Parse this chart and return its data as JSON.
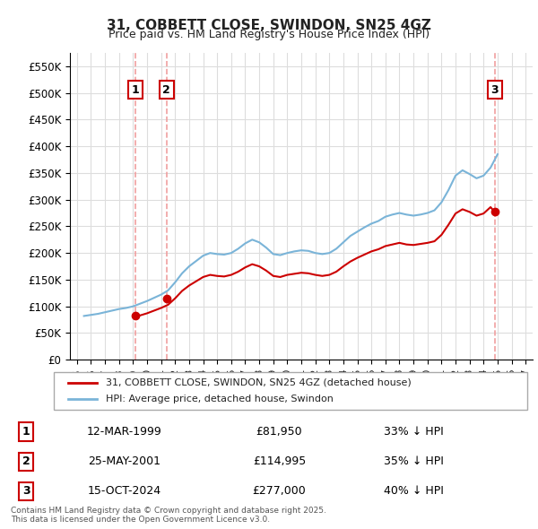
{
  "title": "31, COBBETT CLOSE, SWINDON, SN25 4GZ",
  "subtitle": "Price paid vs. HM Land Registry's House Price Index (HPI)",
  "legend_entry1": "31, COBBETT CLOSE, SWINDON, SN25 4GZ (detached house)",
  "legend_entry2": "HPI: Average price, detached house, Swindon",
  "hpi_color": "#7ab4d8",
  "property_color": "#cc0000",
  "vline_color_light": "#f0a0a0",
  "background_color": "#ffffff",
  "grid_color": "#dddddd",
  "annotation_box_color": "#cc0000",
  "ylim": [
    0,
    575000
  ],
  "yticks": [
    0,
    50000,
    100000,
    150000,
    200000,
    250000,
    300000,
    350000,
    400000,
    450000,
    500000,
    550000
  ],
  "transactions": [
    {
      "id": 1,
      "date": 1999.19,
      "price": 81950,
      "label": "1",
      "vline_x": 1999.19
    },
    {
      "id": 2,
      "date": 2001.39,
      "price": 114995,
      "label": "2",
      "vline_x": 2001.39
    },
    {
      "id": 3,
      "date": 2024.79,
      "price": 277000,
      "label": "3",
      "vline_x": 2024.79
    }
  ],
  "table_rows": [
    {
      "num": "1",
      "date": "12-MAR-1999",
      "price": "£81,950",
      "hpi": "33% ↓ HPI"
    },
    {
      "num": "2",
      "date": "25-MAY-2001",
      "price": "£114,995",
      "hpi": "35% ↓ HPI"
    },
    {
      "num": "3",
      "date": "15-OCT-2024",
      "price": "£277,000",
      "hpi": "40% ↓ HPI"
    }
  ],
  "footer": "Contains HM Land Registry data © Crown copyright and database right 2025.\nThis data is licensed under the Open Government Licence v3.0.",
  "hpi_data": {
    "x": [
      1995.5,
      1996.0,
      1996.5,
      1997.0,
      1997.5,
      1998.0,
      1998.5,
      1999.0,
      1999.5,
      2000.0,
      2000.5,
      2001.0,
      2001.5,
      2002.0,
      2002.5,
      2003.0,
      2003.5,
      2004.0,
      2004.5,
      2005.0,
      2005.5,
      2006.0,
      2006.5,
      2007.0,
      2007.5,
      2008.0,
      2008.5,
      2009.0,
      2009.5,
      2010.0,
      2010.5,
      2011.0,
      2011.5,
      2012.0,
      2012.5,
      2013.0,
      2013.5,
      2014.0,
      2014.5,
      2015.0,
      2015.5,
      2016.0,
      2016.5,
      2017.0,
      2017.5,
      2018.0,
      2018.5,
      2019.0,
      2019.5,
      2020.0,
      2020.5,
      2021.0,
      2021.5,
      2022.0,
      2022.5,
      2023.0,
      2023.5,
      2024.0,
      2024.5,
      2025.0
    ],
    "y": [
      82000,
      84000,
      86000,
      89000,
      92000,
      95000,
      97000,
      100000,
      105000,
      110000,
      116000,
      122000,
      130000,
      145000,
      162000,
      175000,
      185000,
      195000,
      200000,
      198000,
      197000,
      200000,
      208000,
      218000,
      225000,
      220000,
      210000,
      198000,
      196000,
      200000,
      203000,
      205000,
      204000,
      200000,
      198000,
      200000,
      208000,
      220000,
      232000,
      240000,
      248000,
      255000,
      260000,
      268000,
      272000,
      275000,
      272000,
      270000,
      272000,
      275000,
      280000,
      295000,
      318000,
      345000,
      355000,
      348000,
      340000,
      345000,
      360000,
      385000
    ]
  },
  "property_data": {
    "x": [
      1999.19,
      2001.39,
      2024.79
    ],
    "y": [
      81950,
      114995,
      277000
    ]
  },
  "hpi_indexed_data": {
    "x": [
      1999.19,
      1999.5,
      2000.0,
      2000.5,
      2001.0,
      2001.5,
      2002.0,
      2002.5,
      2003.0,
      2003.5,
      2004.0,
      2004.5,
      2005.0,
      2005.5,
      2006.0,
      2006.5,
      2007.0,
      2007.5,
      2008.0,
      2008.5,
      2009.0,
      2009.5,
      2010.0,
      2010.5,
      2011.0,
      2011.5,
      2012.0,
      2012.5,
      2013.0,
      2013.5,
      2014.0,
      2014.5,
      2015.0,
      2015.5,
      2016.0,
      2016.5,
      2017.0,
      2017.5,
      2018.0,
      2018.5,
      2019.0,
      2019.5,
      2020.0,
      2020.5,
      2021.0,
      2021.5,
      2022.0,
      2022.5,
      2023.0,
      2023.5,
      2024.0,
      2024.5,
      2024.79
    ],
    "y": [
      81950,
      83000,
      87000,
      92000,
      97000,
      103000,
      115000,
      129000,
      139000,
      147000,
      155000,
      159000,
      157000,
      156000,
      159000,
      165000,
      173000,
      179000,
      175000,
      167000,
      157000,
      155000,
      159000,
      161000,
      163000,
      162000,
      159000,
      157000,
      159000,
      165000,
      175000,
      184000,
      191000,
      197000,
      203000,
      207000,
      213000,
      216000,
      219000,
      216000,
      215000,
      217000,
      219000,
      222000,
      234000,
      253000,
      274000,
      282000,
      277000,
      270000,
      274000,
      286000,
      277000
    ]
  }
}
